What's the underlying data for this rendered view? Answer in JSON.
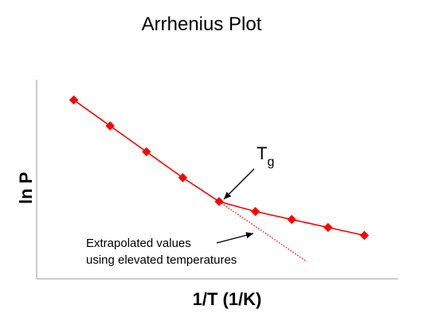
{
  "chart_data": {
    "type": "line",
    "title": "Arrhenius Plot",
    "xlabel": "1/T (1/K)",
    "ylabel": "ln P",
    "grid": false,
    "legend": "none",
    "ticks_shown": false,
    "xlim": [
      0,
      10
    ],
    "ylim": [
      0,
      10
    ],
    "series": [
      {
        "style": "solid-markers",
        "color": "#ff0000",
        "marker": "diamond",
        "x": [
          1.0,
          2.0,
          3.0,
          4.0,
          5.0,
          6.0,
          7.0,
          8.0,
          9.0
        ],
        "y": [
          8.9,
          7.6,
          6.3,
          5.0,
          3.8,
          3.3,
          2.9,
          2.5,
          2.1
        ]
      },
      {
        "style": "dotted",
        "color": "#ff0000",
        "x": [
          5.0,
          7.4
        ],
        "y": [
          3.8,
          0.8
        ]
      }
    ],
    "annotations": [
      {
        "text": "T",
        "subscript": "g",
        "points_to_series": 0,
        "points_to_index": 4
      },
      {
        "text": "Extrapolated values",
        "line2": "using elevated temperatures",
        "points_to_series": 1
      }
    ]
  }
}
